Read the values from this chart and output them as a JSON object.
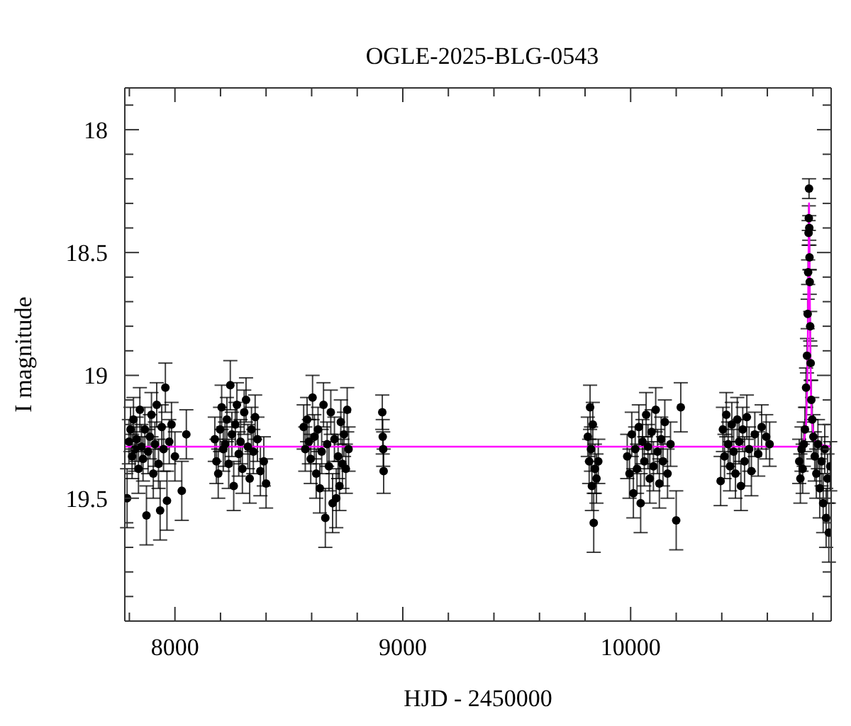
{
  "chart_data": {
    "type": "scatter",
    "title": "OGLE-2025-BLG-0543",
    "xlabel": "HJD - 2450000",
    "ylabel": "I magnitude",
    "xlim": [
      7780,
      10880
    ],
    "xticks": [
      {
        "value": 7800,
        "label": null
      },
      8000,
      {
        "value": 8200,
        "label": null
      },
      {
        "value": 8400,
        "label": null
      },
      {
        "value": 8600,
        "label": null
      },
      {
        "value": 8800,
        "label": null
      },
      9000,
      {
        "value": 9200,
        "label": null
      },
      {
        "value": 9400,
        "label": null
      },
      {
        "value": 9600,
        "label": null
      },
      {
        "value": 9800,
        "label": null
      },
      10000,
      {
        "value": 10200,
        "label": null
      },
      {
        "value": 10400,
        "label": null
      },
      {
        "value": 10600,
        "label": null
      },
      {
        "value": 10800,
        "label": null
      }
    ],
    "ylim": [
      20.0,
      17.83
    ],
    "yticks": [
      {
        "value": 17.9,
        "label": null
      },
      18,
      {
        "value": 18.1,
        "label": null
      },
      {
        "value": 18.2,
        "label": null
      },
      {
        "value": 18.3,
        "label": null
      },
      {
        "value": 18.4,
        "label": null
      },
      18.5,
      {
        "value": 18.6,
        "label": null
      },
      {
        "value": 18.7,
        "label": null
      },
      {
        "value": 18.8,
        "label": null
      },
      {
        "value": 18.9,
        "label": null
      },
      19,
      {
        "value": 19.1,
        "label": null
      },
      {
        "value": 19.2,
        "label": null
      },
      {
        "value": 19.3,
        "label": null
      },
      {
        "value": 19.4,
        "label": null
      },
      19.5,
      {
        "value": 19.6,
        "label": null
      },
      {
        "value": 19.7,
        "label": null
      },
      {
        "value": 19.8,
        "label": null
      },
      {
        "value": 19.9,
        "label": null
      }
    ],
    "series": [
      {
        "color": "#000000",
        "marker": "circle",
        "x": [
          7790,
          7798,
          7805,
          7812,
          7818,
          7825,
          7832,
          7840,
          7846,
          7853,
          7860,
          7868,
          7875,
          7882,
          7890,
          7897,
          7905,
          7912,
          7920,
          7928,
          7935,
          7942,
          7950,
          7958,
          7965,
          7975,
          7985,
          8000,
          8030,
          8050,
          8175,
          8182,
          8190,
          8198,
          8205,
          8212,
          8220,
          8228,
          8236,
          8243,
          8250,
          8258,
          8265,
          8272,
          8280,
          8288,
          8296,
          8304,
          8312,
          8320,
          8328,
          8336,
          8344,
          8352,
          8362,
          8375,
          8390,
          8400,
          8565,
          8572,
          8580,
          8588,
          8596,
          8604,
          8612,
          8620,
          8628,
          8636,
          8644,
          8652,
          8660,
          8668,
          8676,
          8684,
          8692,
          8700,
          8708,
          8716,
          8722,
          8728,
          8735,
          8742,
          8750,
          8756,
          8762,
          8910,
          8912,
          8914,
          8916,
          9812,
          9818,
          9822,
          9826,
          9830,
          9834,
          9838,
          9843,
          9850,
          9858,
          9985,
          9995,
          10005,
          10012,
          10020,
          10028,
          10036,
          10044,
          10052,
          10060,
          10068,
          10076,
          10084,
          10092,
          10100,
          10110,
          10118,
          10126,
          10134,
          10142,
          10150,
          10162,
          10175,
          10200,
          10220,
          10395,
          10405,
          10412,
          10420,
          10428,
          10436,
          10444,
          10452,
          10460,
          10468,
          10476,
          10484,
          10492,
          10500,
          10510,
          10520,
          10530,
          10545,
          10560,
          10575,
          10595,
          10610,
          10740,
          10745,
          10750,
          10755,
          10760,
          10765,
          10770,
          10774,
          10777,
          10779,
          10781,
          10782,
          10783,
          10784,
          10785,
          10786,
          10788,
          10790,
          10793,
          10797,
          10802,
          10808,
          10815,
          10822,
          10830,
          10838,
          10845,
          10852,
          10858,
          10864,
          10870,
          10876
        ],
        "values": [
          19.5,
          19.27,
          19.22,
          19.33,
          19.18,
          19.3,
          19.26,
          19.38,
          19.14,
          19.29,
          19.34,
          19.22,
          19.57,
          19.31,
          19.25,
          19.16,
          19.4,
          19.28,
          19.12,
          19.36,
          19.55,
          19.21,
          19.3,
          19.05,
          19.51,
          19.27,
          19.2,
          19.33,
          19.47,
          19.24,
          19.26,
          19.35,
          19.4,
          19.22,
          19.13,
          19.3,
          19.28,
          19.18,
          19.36,
          19.04,
          19.24,
          19.45,
          19.2,
          19.12,
          19.32,
          19.27,
          19.38,
          19.15,
          19.1,
          19.29,
          19.42,
          19.22,
          19.31,
          19.17,
          19.26,
          19.39,
          19.35,
          19.44,
          19.21,
          19.3,
          19.18,
          19.27,
          19.34,
          19.09,
          19.25,
          19.4,
          19.22,
          19.46,
          19.31,
          19.12,
          19.58,
          19.28,
          19.37,
          19.15,
          19.52,
          19.26,
          19.5,
          19.33,
          19.45,
          19.19,
          19.36,
          19.24,
          19.38,
          19.14,
          19.3,
          19.15,
          19.25,
          19.3,
          19.39,
          19.25,
          19.35,
          19.13,
          19.3,
          19.45,
          19.2,
          19.6,
          19.38,
          19.42,
          19.35,
          19.33,
          19.4,
          19.24,
          19.48,
          19.3,
          19.38,
          19.21,
          19.52,
          19.27,
          19.35,
          19.16,
          19.29,
          19.42,
          19.23,
          19.37,
          19.14,
          19.31,
          19.44,
          19.26,
          19.35,
          19.19,
          19.4,
          19.28,
          19.59,
          19.13,
          19.43,
          19.22,
          19.33,
          19.16,
          19.28,
          19.37,
          19.2,
          19.31,
          19.4,
          19.18,
          19.27,
          19.45,
          19.22,
          19.35,
          19.17,
          19.3,
          19.39,
          19.24,
          19.32,
          19.21,
          19.25,
          19.28,
          19.35,
          19.42,
          19.3,
          19.38,
          19.28,
          19.22,
          19.05,
          18.92,
          18.75,
          18.58,
          18.42,
          18.36,
          18.24,
          18.4,
          18.52,
          18.62,
          18.8,
          18.95,
          19.1,
          19.18,
          19.25,
          19.33,
          19.4,
          19.28,
          19.46,
          19.35,
          19.52,
          19.3,
          19.58,
          19.42,
          19.64,
          19.37
        ],
        "errors": [
          0.12,
          0.09,
          0.09,
          0.09,
          0.09,
          0.09,
          0.09,
          0.1,
          0.09,
          0.09,
          0.09,
          0.09,
          0.12,
          0.09,
          0.09,
          0.09,
          0.1,
          0.09,
          0.09,
          0.1,
          0.12,
          0.09,
          0.09,
          0.1,
          0.12,
          0.09,
          0.09,
          0.1,
          0.12,
          0.1,
          0.09,
          0.09,
          0.1,
          0.09,
          0.09,
          0.09,
          0.09,
          0.09,
          0.1,
          0.1,
          0.09,
          0.1,
          0.09,
          0.09,
          0.09,
          0.09,
          0.1,
          0.09,
          0.09,
          0.09,
          0.1,
          0.09,
          0.09,
          0.09,
          0.09,
          0.1,
          0.1,
          0.1,
          0.09,
          0.09,
          0.09,
          0.09,
          0.1,
          0.09,
          0.09,
          0.1,
          0.09,
          0.1,
          0.09,
          0.09,
          0.12,
          0.09,
          0.1,
          0.09,
          0.12,
          0.09,
          0.12,
          0.09,
          0.1,
          0.09,
          0.1,
          0.09,
          0.1,
          0.09,
          0.09,
          0.07,
          0.07,
          0.07,
          0.09,
          0.08,
          0.09,
          0.09,
          0.09,
          0.1,
          0.09,
          0.12,
          0.1,
          0.1,
          0.09,
          0.09,
          0.1,
          0.09,
          0.1,
          0.09,
          0.1,
          0.09,
          0.12,
          0.09,
          0.1,
          0.09,
          0.09,
          0.1,
          0.09,
          0.1,
          0.09,
          0.09,
          0.1,
          0.09,
          0.1,
          0.09,
          0.1,
          0.09,
          0.12,
          0.1,
          0.1,
          0.09,
          0.09,
          0.09,
          0.09,
          0.1,
          0.09,
          0.09,
          0.1,
          0.09,
          0.09,
          0.1,
          0.09,
          0.1,
          0.09,
          0.09,
          0.1,
          0.09,
          0.09,
          0.09,
          0.09,
          0.09,
          0.09,
          0.1,
          0.09,
          0.1,
          0.09,
          0.09,
          0.08,
          0.07,
          0.06,
          0.05,
          0.05,
          0.05,
          0.04,
          0.05,
          0.05,
          0.05,
          0.06,
          0.07,
          0.08,
          0.09,
          0.09,
          0.1,
          0.1,
          0.1,
          0.12,
          0.1,
          0.12,
          0.1,
          0.12,
          0.1,
          0.12,
          0.1
        ]
      },
      {
        "type": "line",
        "color": "#ff00ff",
        "marker": "none",
        "x": [
          7780,
          10740,
          10760,
          10770,
          10775,
          10778,
          10780,
          10782,
          10783,
          10784,
          10786,
          10788,
          10791,
          10795,
          10805,
          10820,
          10880
        ],
        "values": [
          19.29,
          19.29,
          19.27,
          19.2,
          19.05,
          18.82,
          18.6,
          18.4,
          18.3,
          18.4,
          18.62,
          18.85,
          19.06,
          19.18,
          19.26,
          19.28,
          19.29
        ]
      }
    ]
  }
}
